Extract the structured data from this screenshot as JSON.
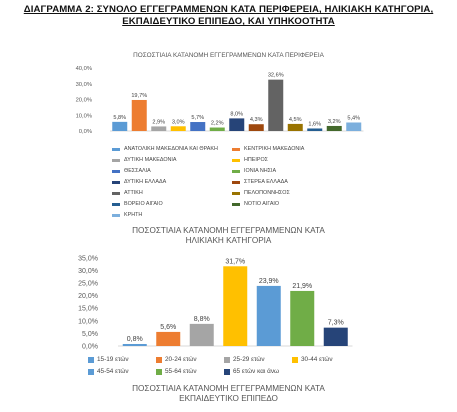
{
  "page": {
    "heading_line1": "ΔΙΑΓΡΑΜΜΑ 2: ΣΥΝΟΛΟ ΕΓΓΕΓΡΑΜΜΕΝΩΝ ΚΑΤΑ ΠΕΡΙΦΕΡΕΙΑ, ΗΛΙΚΙΑΚΗ ΚΑΤΗΓΟΡΙΑ,",
    "heading_line2": "ΕΚΠΑΙΔΕΥΤΙΚΟ ΕΠΙΠΕΔΟ, ΚΑΙ ΥΠΗΚΟΟΤΗΤΑ"
  },
  "chart_data": [
    {
      "type": "bar",
      "title": "ΠΟΣΟΣΤΙΑΙΑ ΚΑΤΑΝΟΜΗ ΕΓΓΕΓΡΑΜΜΕΝΩΝ ΚΑΤΑ ΠΕΡΙΦΕΡΕΙΑ",
      "ylim": [
        0,
        40
      ],
      "yticks": [
        "0,0%",
        "10,0%",
        "20,0%",
        "30,0%",
        "40,0%"
      ],
      "grid": false,
      "legend": "bottom",
      "series": [
        {
          "name": "ΑΝΑΤΟΛΙΚΗ ΜΑΚΕΔΟΝΙΑ ΚΑΙ ΘΡΑΚΗ",
          "value": 5.8,
          "label": "5,8%",
          "color": "#5b9bd5"
        },
        {
          "name": "ΚΕΝΤΡΙΚΗ ΜΑΚΕΔΟΝΙΑ",
          "value": 19.7,
          "label": "19,7%",
          "color": "#ed7d31"
        },
        {
          "name": "ΔΥΤΙΚΗ ΜΑΚΕΔΟΝΙΑ",
          "value": 2.9,
          "label": "2,9%",
          "color": "#a5a5a5"
        },
        {
          "name": "ΗΠΕΙΡΟΣ",
          "value": 3.0,
          "label": "3,0%",
          "color": "#ffc000"
        },
        {
          "name": "ΘΕΣΣΑΛΙΑ",
          "value": 5.7,
          "label": "5,7%",
          "color": "#4472c4"
        },
        {
          "name": "ΙΟΝΙΑ ΝΗΣΙΑ",
          "value": 2.2,
          "label": "2,2%",
          "color": "#70ad47"
        },
        {
          "name": "ΔΥΤΙΚΗ ΕΛΛΑΔΑ",
          "value": 8.0,
          "label": "8,0%",
          "color": "#264478"
        },
        {
          "name": "ΣΤΕΡΕΑ ΕΛΛΑΔΑ",
          "value": 4.3,
          "label": "4,3%",
          "color": "#9e480e"
        },
        {
          "name": "ΑΤΤΙΚΗ",
          "value": 32.6,
          "label": "32,6%",
          "color": "#636363"
        },
        {
          "name": "ΠΕΛΟΠΟΝΝΗΣΟΣ",
          "value": 4.5,
          "label": "4,5%",
          "color": "#997300"
        },
        {
          "name": "ΒΟΡΕΙΟ ΑΙΓΑΙΟ",
          "value": 1.6,
          "label": "1,6%",
          "color": "#255e91"
        },
        {
          "name": "ΝΟΤΙΟ ΑΙΓΑΙΟ",
          "value": 3.2,
          "label": "3,2%",
          "color": "#43682b"
        },
        {
          "name": "ΚΡΗΤΗ",
          "value": 5.4,
          "label": "5,4%",
          "color": "#7cafdd"
        }
      ]
    },
    {
      "type": "bar",
      "title_line1": "ΠΟΣΟΣΤΙΑΙΑ ΚΑΤΑΝΟΜΗ ΕΓΓΕΓΡΑΜΜΕΝΩΝ ΚΑΤΑ",
      "title_line2": "ΗΛΙΚΙΑΚΗ ΚΑΤΗΓΟΡΙΑ",
      "ylim": [
        0,
        35
      ],
      "yticks": [
        "0,0%",
        "5,0%",
        "10,0%",
        "15,0%",
        "20,0%",
        "25,0%",
        "30,0%",
        "35,0%"
      ],
      "grid": false,
      "legend": "bottom",
      "series": [
        {
          "name": "15-19 ετών",
          "value": 0.8,
          "label": "0,8%",
          "color": "#5b9bd5"
        },
        {
          "name": "20-24 ετών",
          "value": 5.6,
          "label": "5,6%",
          "color": "#ed7d31"
        },
        {
          "name": "25-29 ετών",
          "value": 8.8,
          "label": "8,8%",
          "color": "#a5a5a5"
        },
        {
          "name": "30-44 ετών",
          "value": 31.7,
          "label": "31,7%",
          "color": "#ffc000"
        },
        {
          "name": "45-54 ετών",
          "value": 23.9,
          "label": "23,9%",
          "color": "#5b9bd5"
        },
        {
          "name": "55-64 ετών",
          "value": 21.9,
          "label": "21,9%",
          "color": "#70ad47"
        },
        {
          "name": "65 ετών και άνω",
          "value": 7.3,
          "label": "7,3%",
          "color": "#264478"
        }
      ]
    },
    {
      "type": "bar",
      "title_line1": "ΠΟΣΟΣΤΙΑΙΑ ΚΑΤΑΝΟΜΗ ΕΓΓΕΓΡΑΜΜΕΝΩΝ ΚΑΤΑ",
      "title_line2": "ΕΚΠΑΙΔΕΥΤΙΚΟ ΕΠΙΠΕΔΟ",
      "series": []
    }
  ]
}
